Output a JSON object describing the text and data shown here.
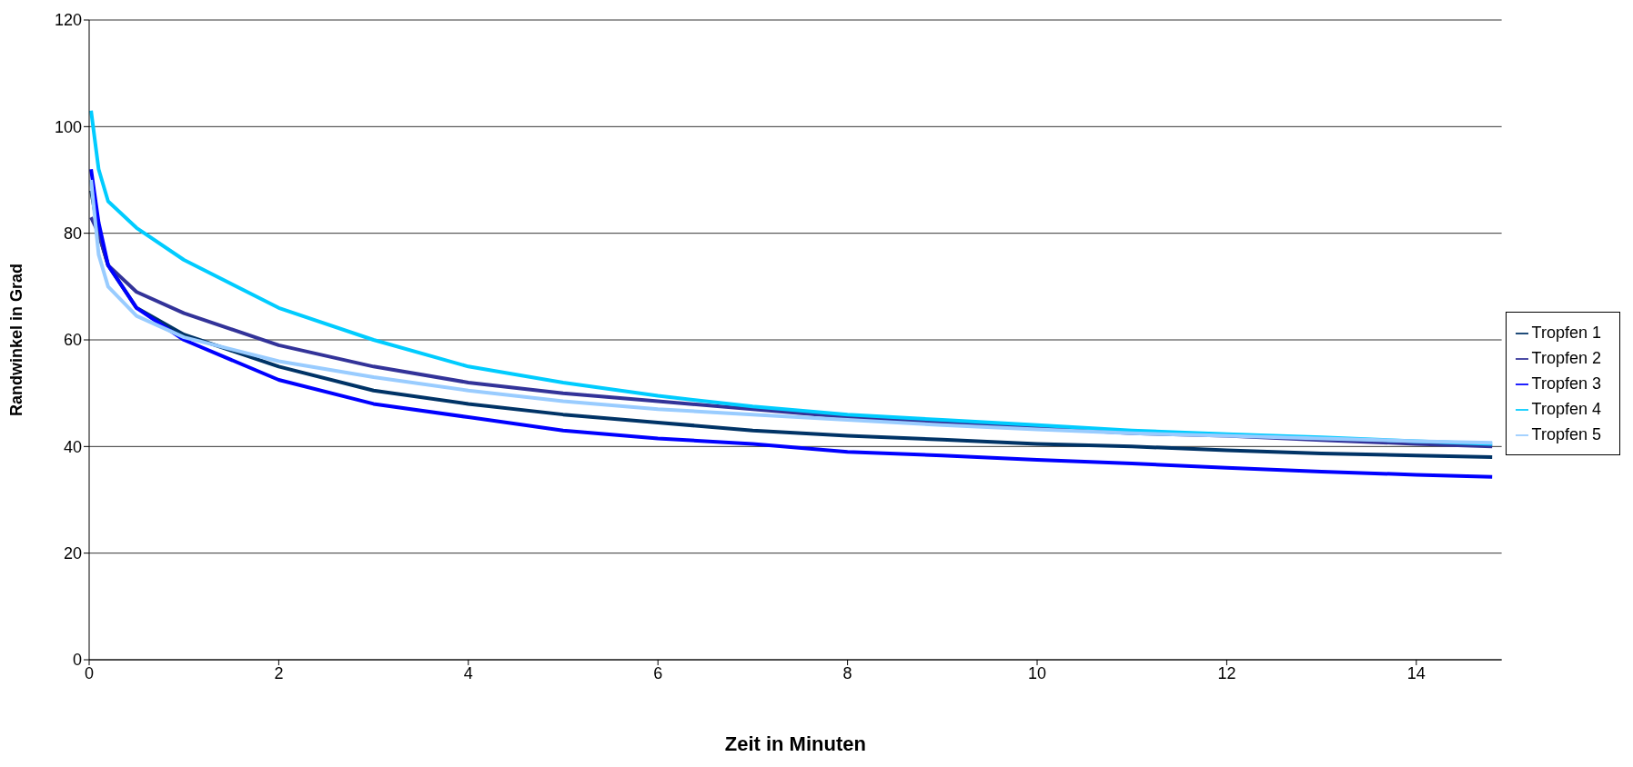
{
  "chart_data": {
    "type": "line",
    "xlabel": "Zeit in Minuten",
    "ylabel": "Randwinkel in Grad",
    "x": [
      0.02,
      0.1,
      0.2,
      0.5,
      1,
      2,
      3,
      4,
      5,
      6,
      7,
      8,
      9,
      10,
      11,
      12,
      13,
      14,
      14.8
    ],
    "series": [
      {
        "name": "Tropfen 1",
        "color": "#003366",
        "values": [
          88,
          80,
          74,
          66,
          61,
          55,
          50.5,
          48,
          46,
          44.5,
          43,
          42,
          41.3,
          40.5,
          40,
          39.3,
          38.7,
          38.3,
          38
        ]
      },
      {
        "name": "Tropfen 2",
        "color": "#333399",
        "values": [
          83,
          80,
          74,
          69,
          65,
          59,
          55,
          52,
          50,
          48.5,
          47,
          45.5,
          44.5,
          43.5,
          42.5,
          42,
          41.2,
          40.5,
          40
        ]
      },
      {
        "name": "Tropfen 3",
        "color": "#0000ff",
        "values": [
          92,
          82,
          74,
          66,
          60,
          52.5,
          48,
          45.5,
          43,
          41.5,
          40.5,
          39,
          38.3,
          37.5,
          36.8,
          36,
          35.3,
          34.7,
          34.3
        ]
      },
      {
        "name": "Tropfen 4",
        "color": "#00ccff",
        "values": [
          103,
          92,
          86,
          81,
          75,
          66,
          60,
          55,
          52,
          49.5,
          47.5,
          46,
          45,
          44,
          43,
          42.3,
          41.7,
          41,
          40.5
        ]
      },
      {
        "name": "Tropfen 5",
        "color": "#99ccff",
        "values": [
          90,
          76,
          70,
          64.5,
          60.5,
          56,
          53,
          50.5,
          48.5,
          47,
          46,
          45,
          44,
          43.2,
          42.5,
          42,
          41.5,
          41,
          40.7
        ]
      }
    ],
    "xlim": [
      0,
      14.9
    ],
    "xticks": [
      0,
      2,
      4,
      6,
      8,
      10,
      12,
      14
    ],
    "ylim": [
      0,
      120
    ],
    "yticks": [
      0,
      20,
      40,
      60,
      80,
      100,
      120
    ],
    "grid": "y",
    "legend": "right",
    "marker": "none",
    "line_style": "solid"
  }
}
